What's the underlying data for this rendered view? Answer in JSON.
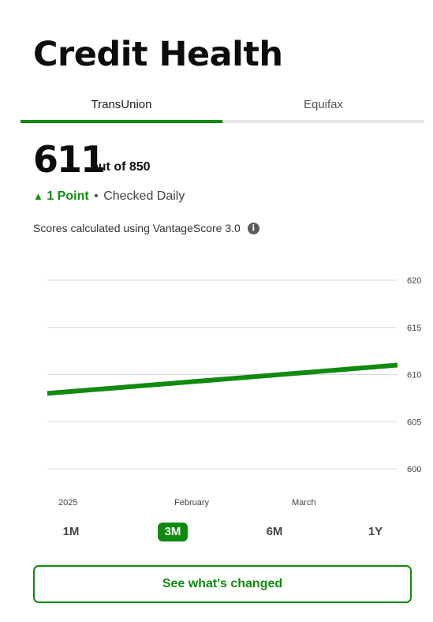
{
  "page": {
    "title": "Credit Health"
  },
  "tabs": [
    {
      "label": "TransUnion",
      "active": true
    },
    {
      "label": "Equifax",
      "active": false
    }
  ],
  "score": {
    "value": "611",
    "suffix": "out of 850",
    "change_icon": "triangle-up-icon",
    "change_text": "1 Point",
    "separator": "•",
    "frequency": "Checked Daily",
    "model_note": "Scores calculated using VantageScore 3.0",
    "info_icon": "info-icon"
  },
  "colors": {
    "accent": "#108a0f",
    "text": "#111111",
    "muted": "#555555",
    "grid": "#d9d9d9"
  },
  "chart_data": {
    "type": "line",
    "title": "",
    "xlabel": "",
    "ylabel": "",
    "x_tick_labels": [
      "2025",
      "February",
      "March"
    ],
    "y_ticks": [
      600,
      605,
      610,
      615,
      620
    ],
    "ylim": [
      600,
      620
    ],
    "grid": true,
    "series": [
      {
        "color": "#108a0f",
        "points": [
          {
            "x": "2025-01-01",
            "y": 608
          },
          {
            "x": "2025-03-31",
            "y": 611
          }
        ]
      }
    ]
  },
  "ranges": [
    {
      "label": "1M",
      "active": false
    },
    {
      "label": "3M",
      "active": true
    },
    {
      "label": "6M",
      "active": false
    },
    {
      "label": "1Y",
      "active": false
    }
  ],
  "cta": {
    "label": "See what's changed"
  }
}
